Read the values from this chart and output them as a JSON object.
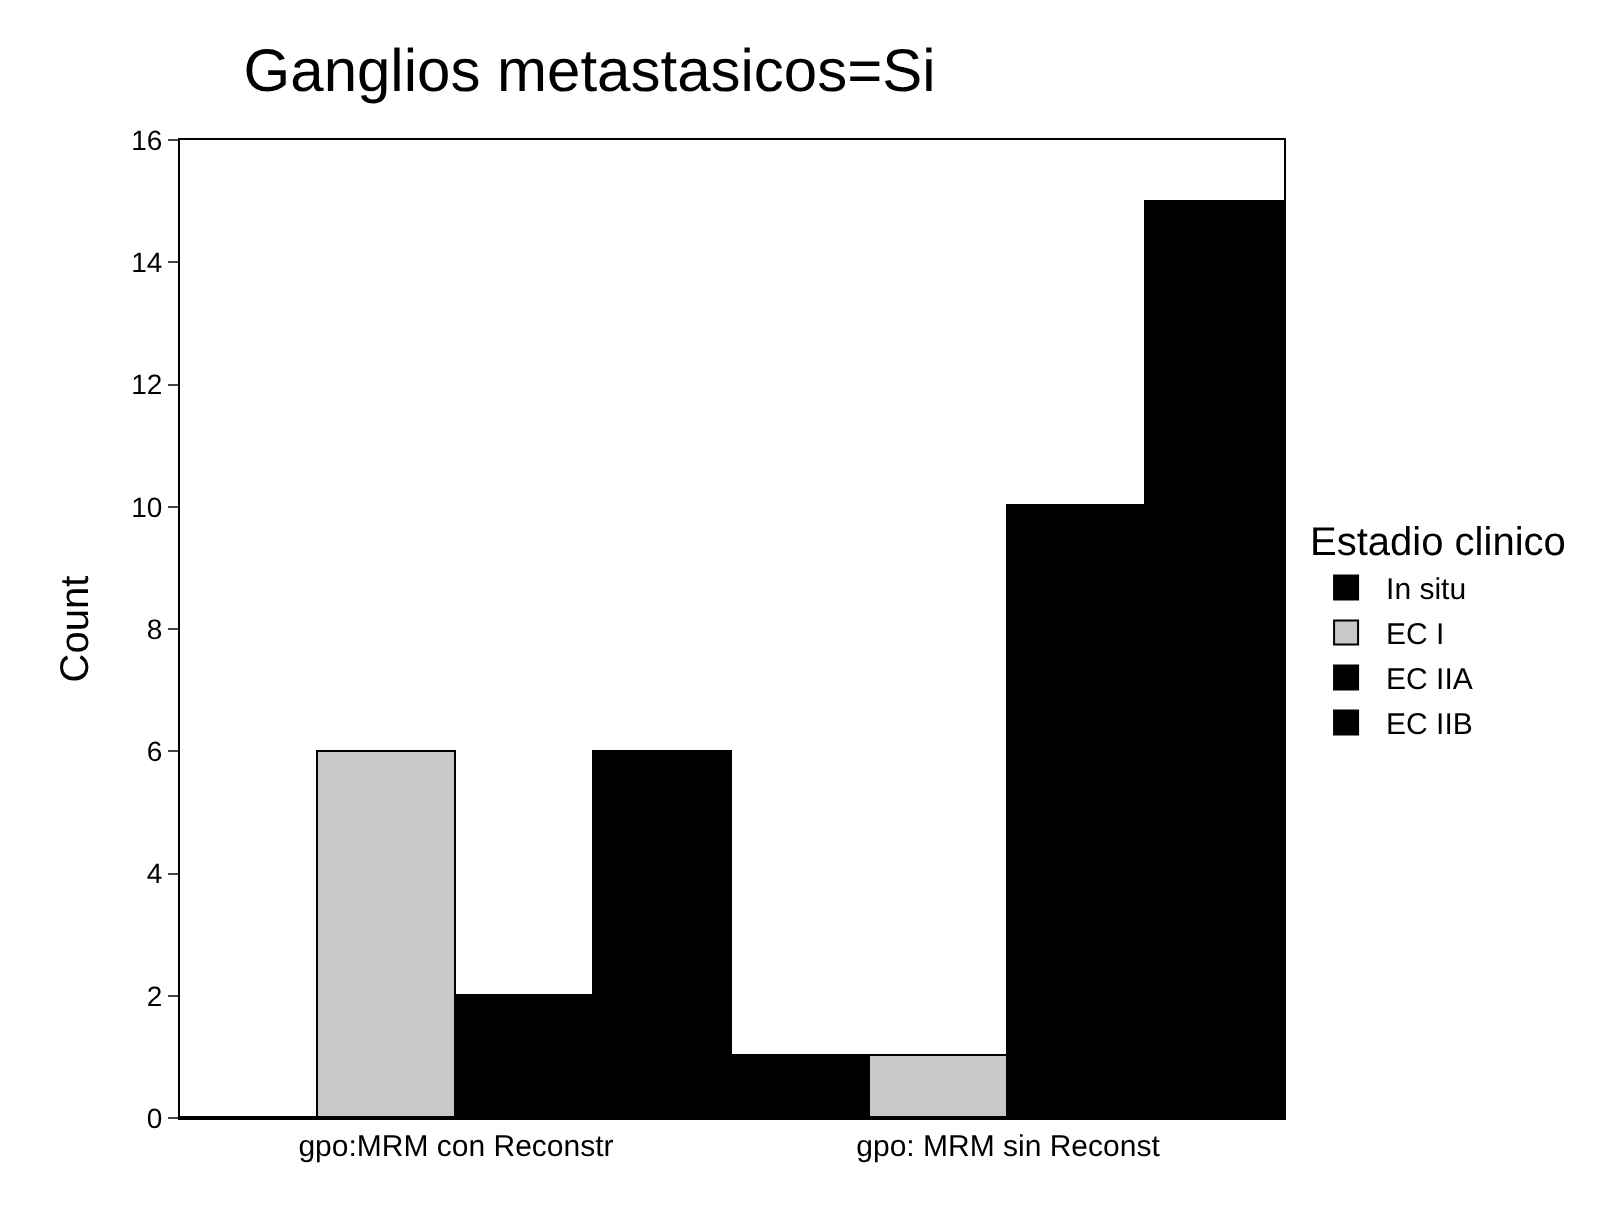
{
  "chart_data": {
    "type": "bar",
    "title": "Ganglios metastasicos=Si",
    "ylabel": "Count",
    "legend_title": "Estadio clinico",
    "categories": [
      "gpo:MRM con Reconstr",
      "gpo: MRM sin Reconst"
    ],
    "series": [
      {
        "name": "In situ",
        "color": "#000000",
        "values": [
          0,
          1
        ]
      },
      {
        "name": "EC I",
        "color": "#c8c8c8",
        "values": [
          6,
          1
        ]
      },
      {
        "name": "EC IIA",
        "color": "#000000",
        "values": [
          2,
          10
        ]
      },
      {
        "name": "EC IIB",
        "color": "#000000",
        "values": [
          6,
          15
        ]
      }
    ],
    "ylim": [
      0,
      16
    ],
    "yticks": [
      0,
      2,
      4,
      6,
      8,
      10,
      12,
      14,
      16
    ],
    "legend": "right"
  }
}
